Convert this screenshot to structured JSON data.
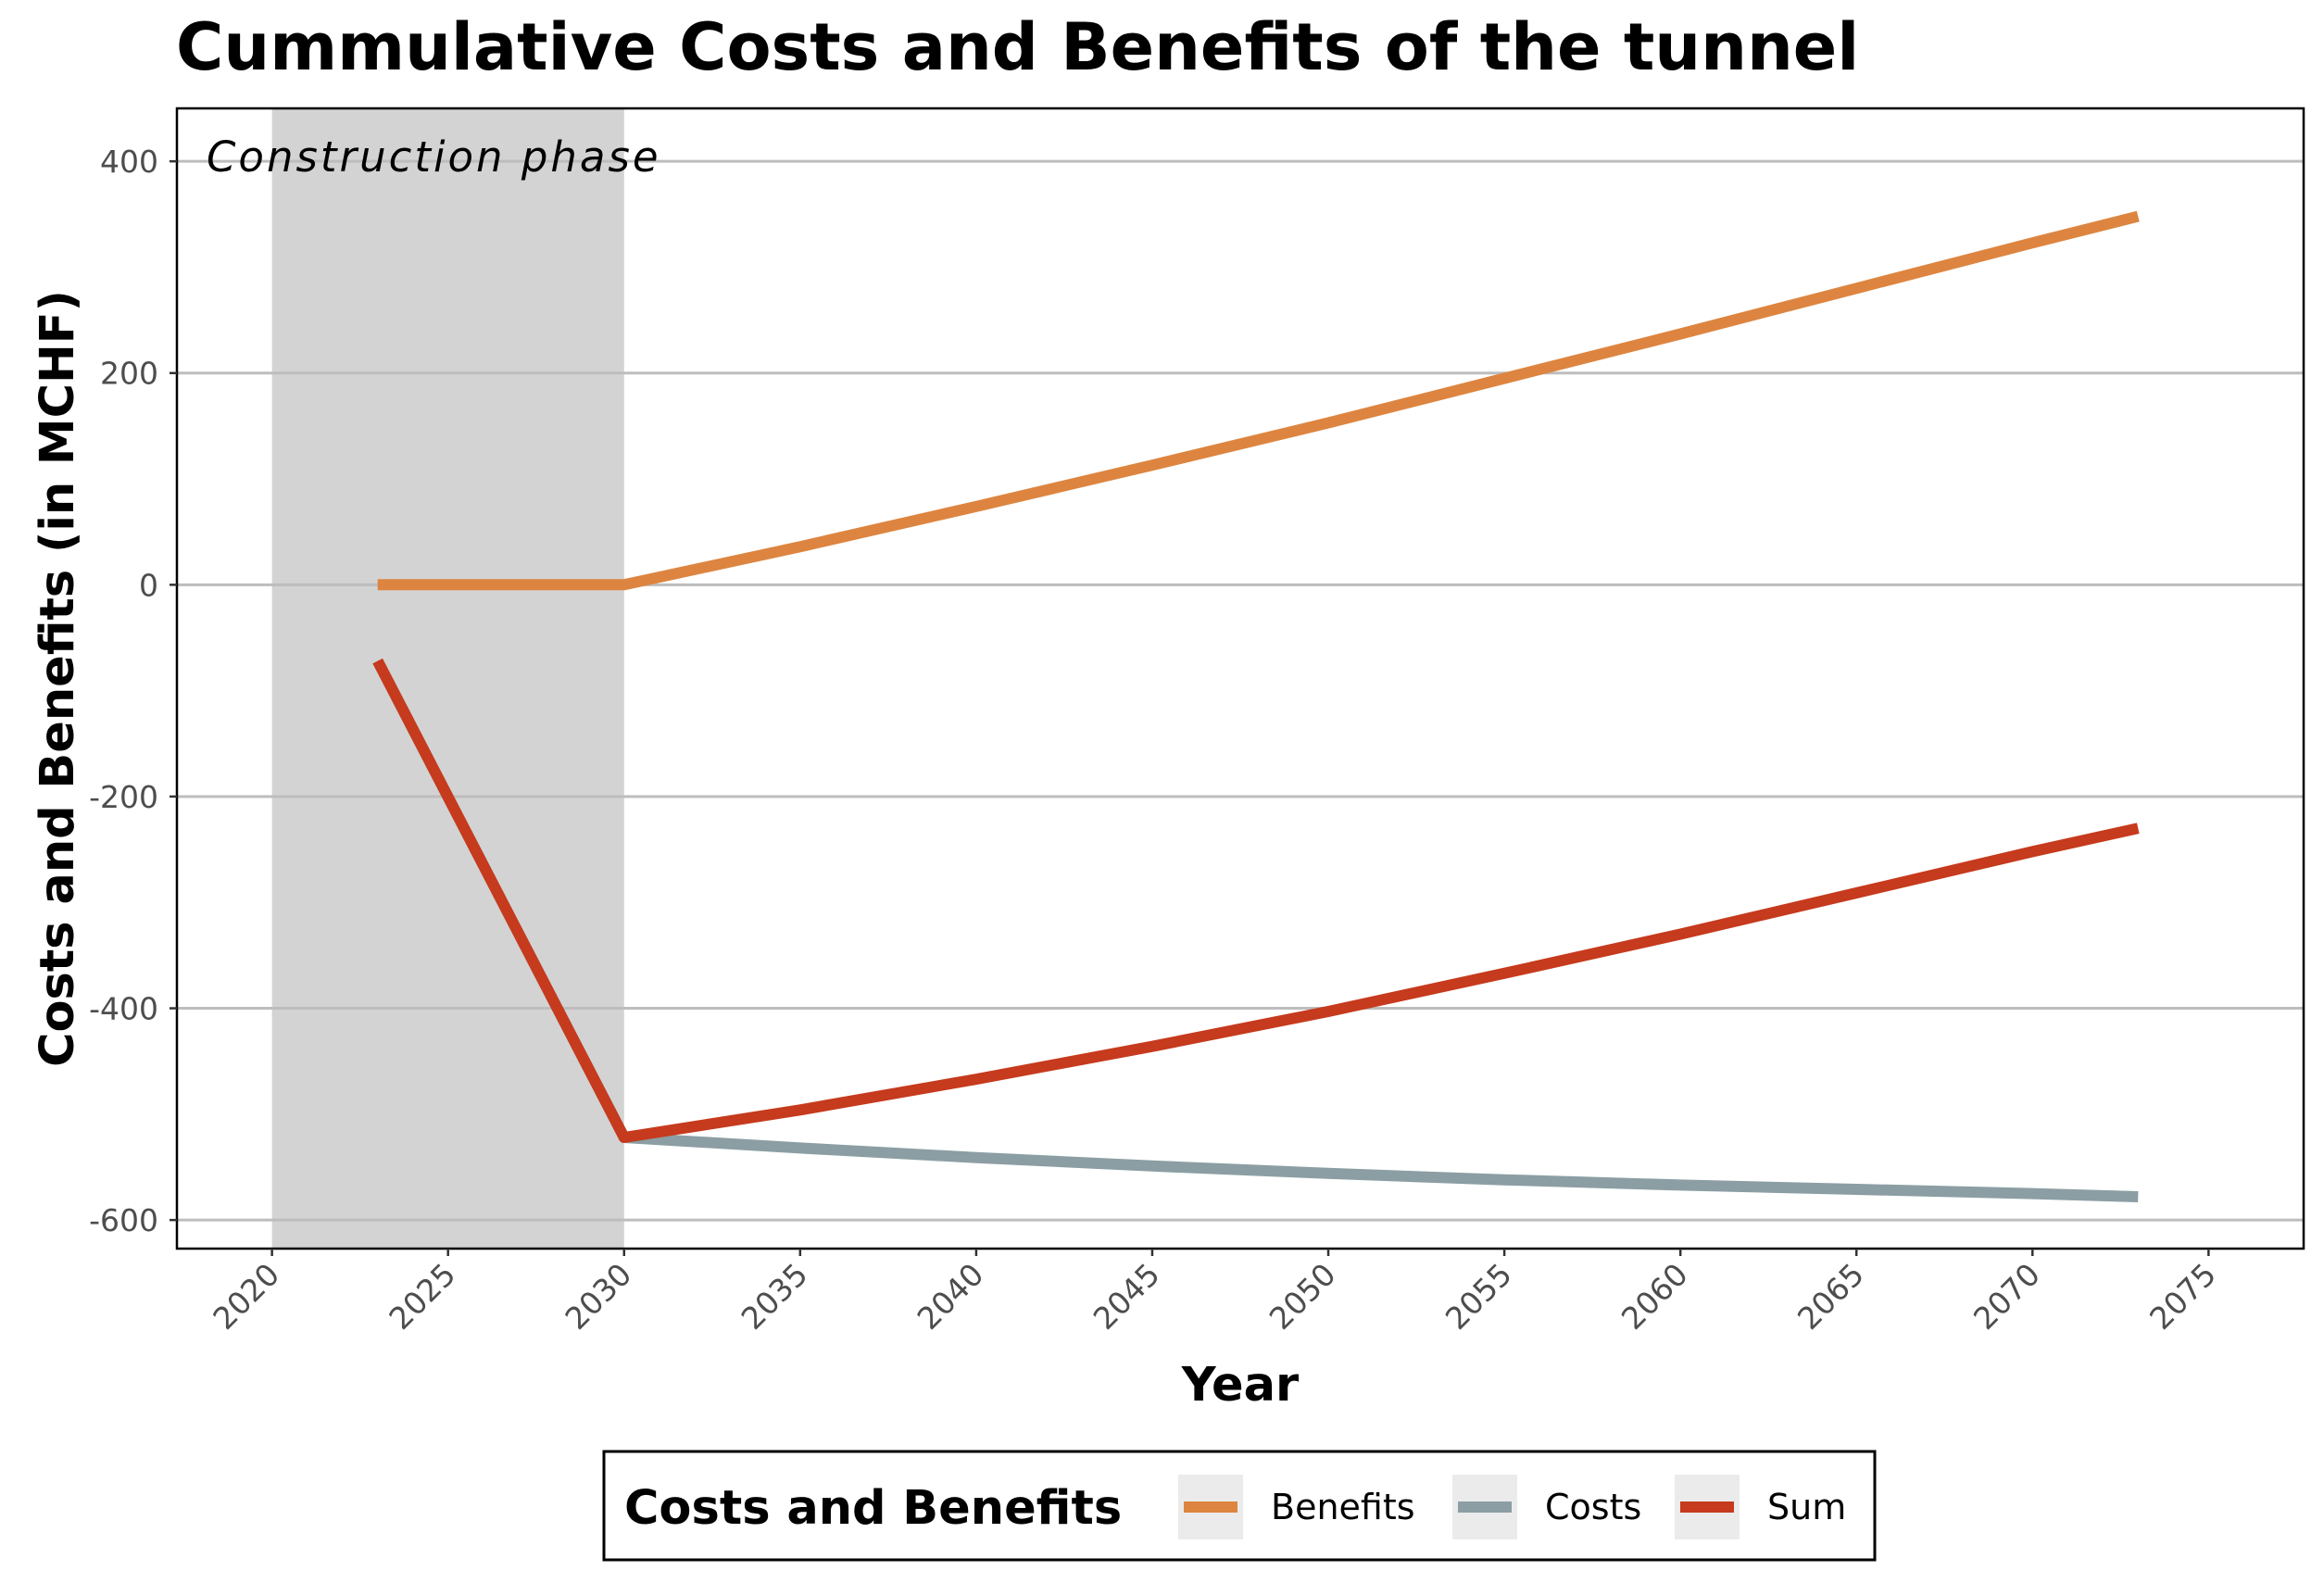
{
  "chart_data": {
    "type": "line",
    "title": "Cummulative Costs and Benefits of the tunnel",
    "xlabel": "Year",
    "ylabel": "Costs and Benefits (in MCHF)",
    "xlim": [
      2017.3,
      2077.7
    ],
    "ylim": [
      -627,
      450
    ],
    "x_ticks": [
      2020,
      2025,
      2030,
      2035,
      2040,
      2045,
      2050,
      2055,
      2060,
      2065,
      2070,
      2075
    ],
    "y_ticks": [
      -600,
      -400,
      -200,
      0,
      200,
      400
    ],
    "grid": "horizontal major",
    "shaded_region": {
      "x_start": 2020,
      "x_end": 2030,
      "label": "Construction phase",
      "color": "#d3d3d3"
    },
    "legend": {
      "title": "Costs and Benefits",
      "position": "bottom"
    },
    "series": [
      {
        "name": "Benefits",
        "color": "#dd8540",
        "points": [
          [
            2023,
            0
          ],
          [
            2030,
            0
          ],
          [
            2035,
            36
          ],
          [
            2040,
            74
          ],
          [
            2045,
            113
          ],
          [
            2050,
            153
          ],
          [
            2055,
            195
          ],
          [
            2060,
            237
          ],
          [
            2065,
            280
          ],
          [
            2070,
            323
          ],
          [
            2073,
            348
          ]
        ]
      },
      {
        "name": "Costs",
        "color": "#8b9ea3",
        "points": [
          [
            2023,
            -72
          ],
          [
            2030,
            -522
          ],
          [
            2035,
            -532
          ],
          [
            2040,
            -541
          ],
          [
            2045,
            -549
          ],
          [
            2050,
            -556
          ],
          [
            2055,
            -562
          ],
          [
            2060,
            -567
          ],
          [
            2065,
            -571
          ],
          [
            2070,
            -575
          ],
          [
            2073,
            -578
          ]
        ]
      },
      {
        "name": "Sum",
        "color": "#c63a1d",
        "points": [
          [
            2023,
            -72
          ],
          [
            2030,
            -522
          ],
          [
            2035,
            -496
          ],
          [
            2040,
            -467
          ],
          [
            2045,
            -436
          ],
          [
            2050,
            -403
          ],
          [
            2055,
            -367
          ],
          [
            2060,
            -330
          ],
          [
            2065,
            -291
          ],
          [
            2070,
            -252
          ],
          [
            2073,
            -230
          ]
        ]
      }
    ]
  }
}
